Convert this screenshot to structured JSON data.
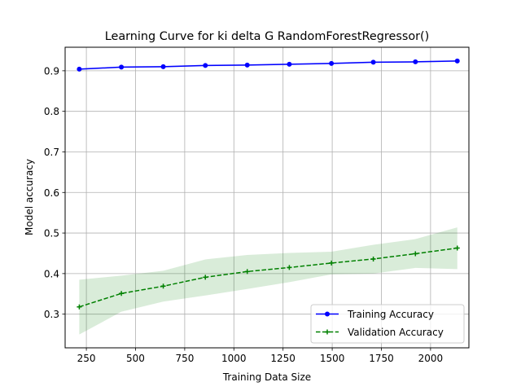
{
  "chart_data": {
    "type": "line",
    "title": "Learning Curve for ki delta G RandomForestRegressor()",
    "xlabel": "Training Data Size",
    "ylabel": "Model accuracy",
    "xlim": [
      142,
      2195
    ],
    "ylim": [
      0.217,
      0.958
    ],
    "xticks": [
      250,
      500,
      750,
      1000,
      1250,
      1500,
      1750,
      2000
    ],
    "yticks": [
      0.3,
      0.4,
      0.5,
      0.6,
      0.7,
      0.8,
      0.9
    ],
    "ytick_labels": [
      "0.3",
      "0.4",
      "0.5",
      "0.6",
      "0.7",
      "0.8",
      "0.9"
    ],
    "grid": true,
    "legend_position": "lower-right",
    "x": [
      214,
      428,
      641,
      855,
      1068,
      1282,
      1496,
      1709,
      1923,
      2136
    ],
    "series": [
      {
        "name": "Training Accuracy",
        "color": "#0000ff",
        "linestyle": "solid",
        "marker": "circle",
        "values": [
          0.904,
          0.909,
          0.91,
          0.913,
          0.914,
          0.916,
          0.918,
          0.921,
          0.922,
          0.924
        ],
        "band_lower": [
          0.902,
          0.907,
          0.908,
          0.911,
          0.912,
          0.914,
          0.916,
          0.919,
          0.92,
          0.922
        ],
        "band_upper": [
          0.906,
          0.911,
          0.912,
          0.915,
          0.916,
          0.918,
          0.92,
          0.923,
          0.924,
          0.926
        ],
        "band_color": "#0000ff"
      },
      {
        "name": "Validation Accuracy",
        "color": "#008000",
        "linestyle": "dashed",
        "marker": "plus",
        "values": [
          0.318,
          0.351,
          0.369,
          0.391,
          0.405,
          0.415,
          0.426,
          0.436,
          0.449,
          0.463
        ],
        "band_lower": [
          0.25,
          0.306,
          0.331,
          0.346,
          0.362,
          0.379,
          0.398,
          0.4,
          0.414,
          0.411
        ],
        "band_upper": [
          0.385,
          0.395,
          0.407,
          0.435,
          0.446,
          0.451,
          0.454,
          0.471,
          0.485,
          0.514
        ],
        "band_color": "#008000"
      }
    ]
  }
}
